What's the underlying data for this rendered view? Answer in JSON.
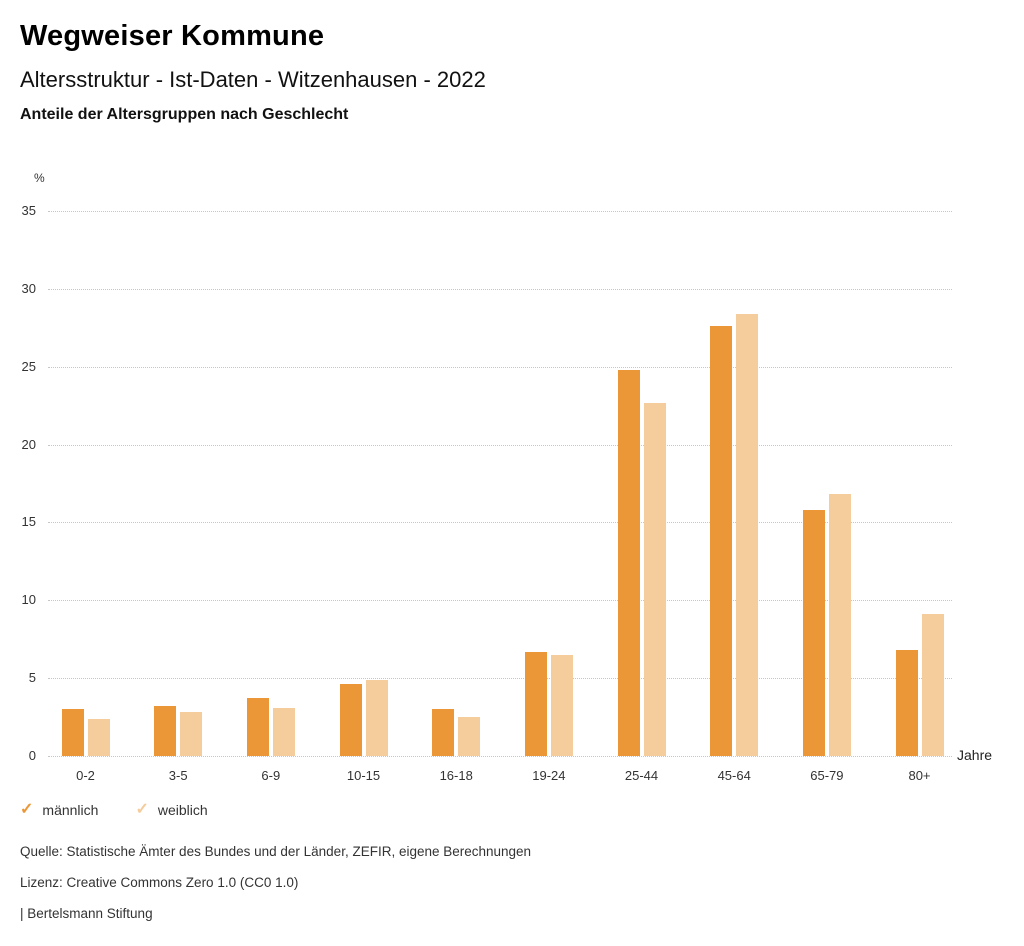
{
  "header": {
    "title": "Wegweiser Kommune",
    "subtitle": "Altersstruktur - Ist-Daten - Witzenhausen - 2022",
    "heading": "Anteile der Altersgruppen nach Geschlecht"
  },
  "chart_data": {
    "type": "bar",
    "title": "Anteile der Altersgruppen nach Geschlecht",
    "unit_label": "%",
    "xlabel": "Jahre",
    "categories": [
      "0-2",
      "3-5",
      "6-9",
      "10-15",
      "16-18",
      "19-24",
      "25-44",
      "45-64",
      "65-79",
      "80+"
    ],
    "series": [
      {
        "name": "männlich",
        "color": "#EC9737",
        "values": [
          3.0,
          3.2,
          3.7,
          4.6,
          3.0,
          6.7,
          24.8,
          27.6,
          15.8,
          6.8
        ]
      },
      {
        "name": "weiblich",
        "color": "#F5CC9C",
        "values": [
          2.4,
          2.8,
          3.1,
          4.9,
          2.5,
          6.5,
          22.7,
          28.4,
          16.8,
          9.1
        ]
      }
    ],
    "ylim": [
      0,
      35
    ],
    "yticks": [
      0,
      5,
      10,
      15,
      20,
      25,
      30,
      35
    ],
    "grid": "dotted horizontal",
    "legend_position": "bottom-left",
    "legend_marker": "check-icon"
  },
  "footer": {
    "source": "Quelle: Statistische Ämter des Bundes und der Länder, ZEFIR, eigene Berechnungen",
    "license": "Lizenz: Creative Commons Zero 1.0 (CC0 1.0)",
    "brand": "| Bertelsmann Stiftung"
  }
}
